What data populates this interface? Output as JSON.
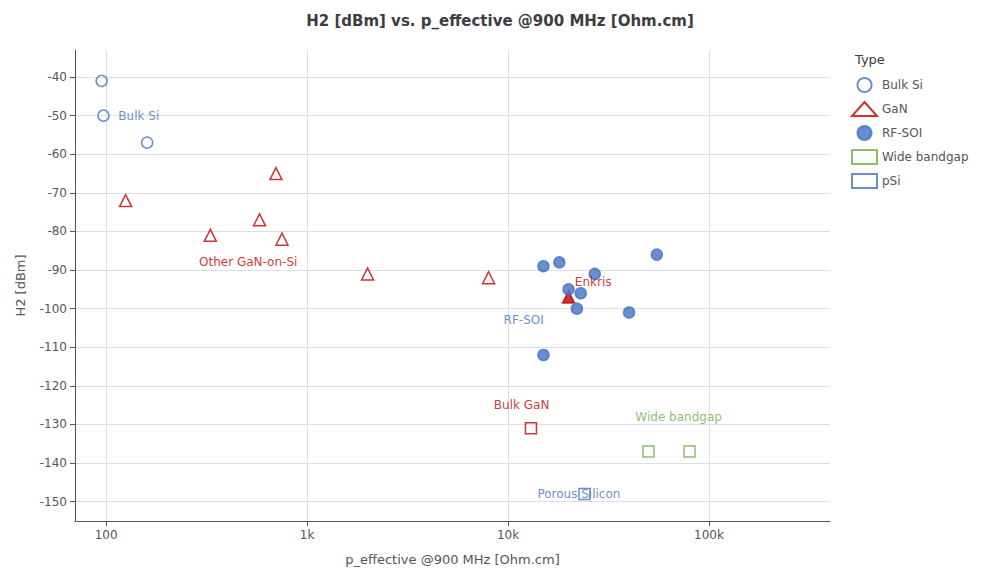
{
  "chart_data": {
    "type": "scatter",
    "title": "H2 [dBm] vs. p_effective @900 MHz [Ohm.cm]",
    "xlabel": "p_effective @900 MHz [Ohm.cm]",
    "ylabel": "H2 [dBm]",
    "log": "x",
    "xlim": [
      70,
      400000
    ],
    "ylim": [
      -155,
      -33
    ],
    "xticks": [
      100,
      {
        "value": 1000,
        "label": "1k"
      },
      {
        "value": 10000,
        "label": "10k"
      },
      {
        "value": 100000,
        "label": "100k"
      }
    ],
    "yticks": [
      -150,
      -140,
      -130,
      -120,
      -110,
      -100,
      -90,
      -80,
      -70,
      -60,
      -50,
      -40
    ],
    "grid": true,
    "legend": "right",
    "legend_title": "Type",
    "series": [
      {
        "name": "Bulk Si",
        "color": "#4472C4",
        "marker": "circle-open",
        "x": [
          95,
          97,
          160
        ],
        "y": [
          -41,
          -50,
          -57
        ]
      },
      {
        "name": "GaN",
        "color": "#C00000",
        "marker": "triangle-open",
        "x": [
          125,
          330,
          580,
          700,
          750,
          2000,
          8000
        ],
        "y": [
          -72,
          -81,
          -77,
          -65,
          -82,
          -91,
          -92
        ]
      },
      {
        "name": "GaN",
        "color": "#C00000",
        "marker": "triangle",
        "x": [
          20000
        ],
        "y": [
          -97
        ]
      },
      {
        "name": "GaN",
        "color": "#C00000",
        "marker": "square-open",
        "x": [
          13000
        ],
        "y": [
          -131
        ]
      },
      {
        "name": "RF-SOI",
        "color": "#4472C4",
        "marker": "circle",
        "x": [
          15000,
          18000,
          20000,
          22000,
          23000,
          27000,
          40000,
          55000
        ],
        "y": [
          -89,
          -88,
          -95,
          -100,
          -96,
          -91,
          -101,
          -86
        ]
      },
      {
        "name": "RF-SOI",
        "color": "#4472C4",
        "marker": "circle",
        "x": [
          15000
        ],
        "y": [
          -112
        ]
      },
      {
        "name": "Wide bandgap",
        "color": "#70AD47",
        "marker": "square-open",
        "x": [
          50000,
          80000
        ],
        "y": [
          -137,
          -137
        ]
      },
      {
        "name": "pSi",
        "color": "#4472C4",
        "marker": "square-open",
        "x": [
          24000
        ],
        "y": [
          -148
        ]
      }
    ],
    "annotations": [
      {
        "text": "Bulk Si",
        "x": 115,
        "y": -50,
        "color": "#4472C4"
      },
      {
        "text": "Other GaN-on-Si",
        "x": 290,
        "y": -88,
        "color": "#C00000"
      },
      {
        "text": "Enkris",
        "x": 21500,
        "y": -93,
        "color": "#C00000"
      },
      {
        "text": "RF-SOI",
        "x": 9500,
        "y": -103,
        "color": "#4472C4"
      },
      {
        "text": "Bulk GaN",
        "x": 8500,
        "y": -125,
        "color": "#C00000"
      },
      {
        "text": "Wide bandgap",
        "x": 43000,
        "y": -128,
        "color": "#70AD47"
      },
      {
        "text": "Porous Silicon",
        "x": 14000,
        "y": -148,
        "color": "#4472C4"
      }
    ]
  }
}
